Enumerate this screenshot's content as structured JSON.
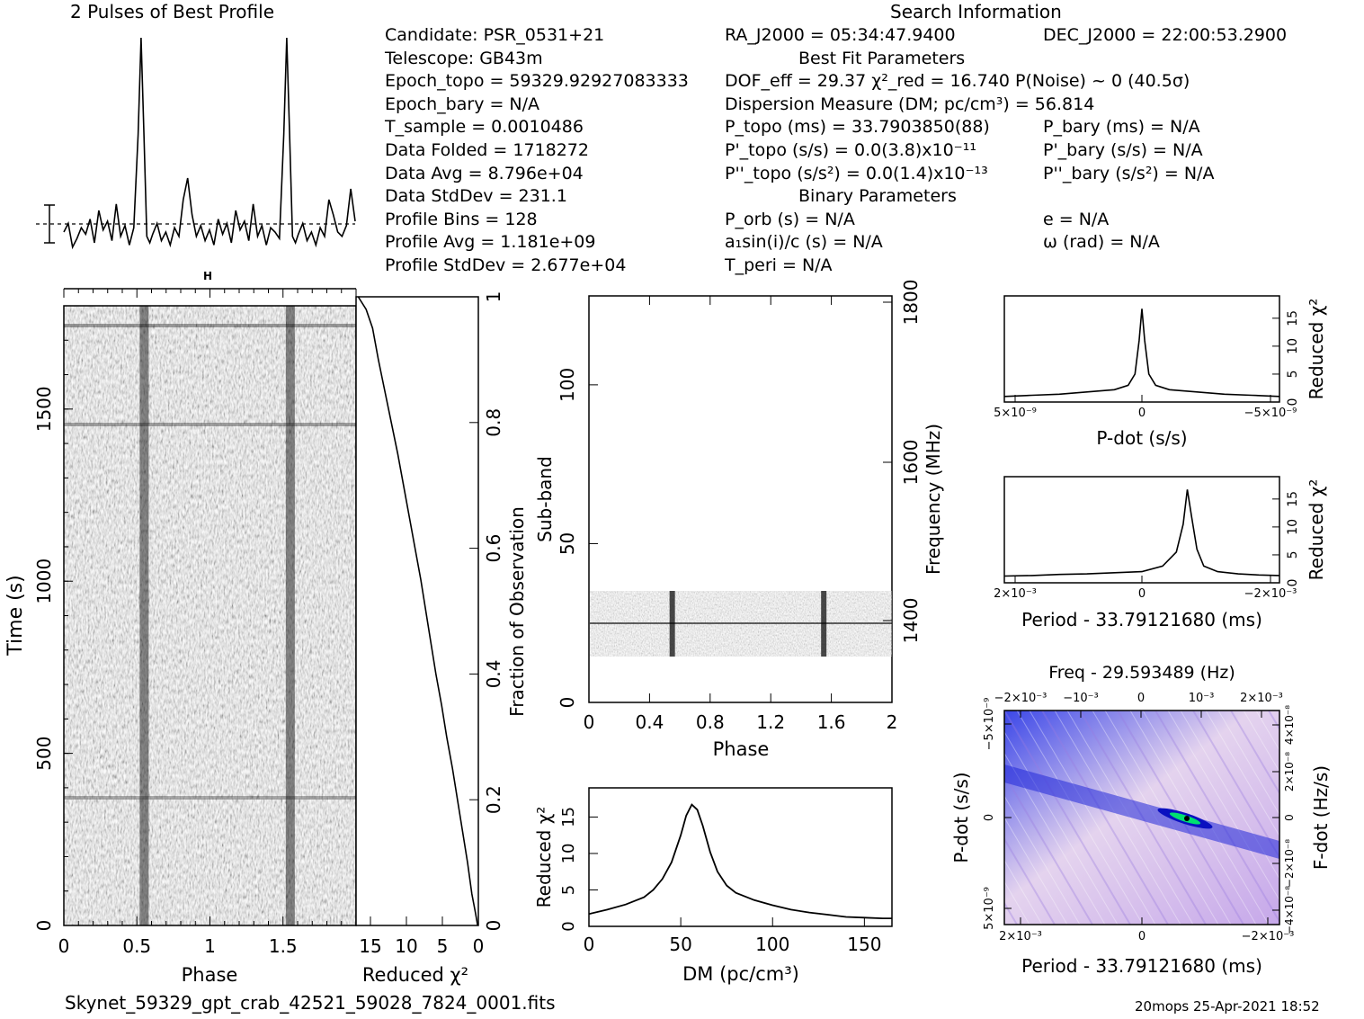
{
  "header": {
    "profile_title": "2 Pulses of Best Profile",
    "search_title": "Search Information"
  },
  "info": {
    "col1": [
      "Candidate:  PSR_0531+21",
      "Telescope:  GB43m",
      "Epoch_topo = 59329.92927083333",
      "Epoch_bary = N/A",
      "T_sample        =  0.0010486",
      "Data Folded     =  1718272",
      "Data Avg        =  8.796e+04",
      "Data StdDev     =  231.1",
      "Profile Bins    =  128",
      "Profile Avg     =  1.181e+09",
      "Profile StdDev  =  2.677e+04"
    ],
    "col2": [
      "RA_J2000 = 05:34:47.9400",
      "Best Fit Parameters",
      "DOF_eff = 29.37  χ²_red = 16.740  P(Noise) ~ 0   (40.5σ)",
      "Dispersion Measure (DM; pc/cm³) = 56.814",
      "P_topo (ms) =  33.7903850(88)",
      "P'_topo (s/s) = 0.0(3.8)x10⁻¹¹",
      "P''_topo (s/s²) = 0.0(1.4)x10⁻¹³",
      "Binary Parameters",
      "P_orb (s) = N/A",
      "a₁sin(i)/c (s) = N/A",
      "T_peri = N/A"
    ],
    "col3": [
      "DEC_J2000 = 22:00:53.2900",
      "",
      "",
      "",
      "P_bary (ms) = N/A",
      "P'_bary (s/s) = N/A",
      "P''_bary (s/s²) = N/A",
      "",
      "e = N/A",
      "ω (rad) = N/A",
      ""
    ]
  },
  "footer": {
    "filename": "Skynet_59329_gpt_crab_42521_59028_7824_0001.fits",
    "stamp": "20mops 25-Apr-2021 18:52"
  },
  "labels": {
    "time_phase_x": "Phase",
    "time_phase_y": "Time (s)",
    "time_chi_x": "Reduced χ²",
    "time_chi_y": "Fraction of Observation",
    "subband_x": "Phase",
    "subband_y": "Sub-band",
    "subband_y2": "Frequency (MHz)",
    "dm_x": "DM (pc/cm³)",
    "dm_y": "Reduced χ²",
    "pdot_x": "P-dot (s/s)",
    "pdot_y": "Reduced χ²",
    "period_x": "Period - 33.79121680 (ms)",
    "period_y": "Reduced χ²",
    "ppdot_title": "Freq - 29.593489 (Hz)",
    "ppdot_x": "Period - 33.79121680 (ms)",
    "ppdot_y": "P-dot (s/s)",
    "ppdot_y2": "F-dot (Hz/s)"
  },
  "chart_data": [
    {
      "id": "profile",
      "type": "line",
      "title": "2 Pulses of Best Profile",
      "x": [
        0.0,
        0.03,
        0.06,
        0.09,
        0.12,
        0.15,
        0.18,
        0.21,
        0.24,
        0.27,
        0.3,
        0.33,
        0.36,
        0.39,
        0.42,
        0.45,
        0.48,
        0.51,
        0.53,
        0.55,
        0.57,
        0.59,
        0.61,
        0.64,
        0.67,
        0.7,
        0.73,
        0.76,
        0.79,
        0.82,
        0.85,
        0.88,
        0.91,
        0.94,
        0.97,
        1.0,
        1.03,
        1.06,
        1.09,
        1.12,
        1.15,
        1.18,
        1.21,
        1.24,
        1.27,
        1.3,
        1.33,
        1.36,
        1.39,
        1.42,
        1.45,
        1.48,
        1.51,
        1.53,
        1.55,
        1.57,
        1.59,
        1.61,
        1.64,
        1.67,
        1.7,
        1.73,
        1.76,
        1.79,
        1.82,
        1.85,
        1.88,
        1.91,
        1.94,
        1.97,
        2.0
      ],
      "y": [
        0.1,
        0.14,
        0.03,
        0.07,
        0.12,
        0.09,
        0.16,
        0.05,
        0.2,
        0.11,
        0.15,
        0.06,
        0.23,
        0.08,
        0.13,
        0.04,
        0.12,
        0.55,
        1.0,
        0.55,
        0.08,
        0.05,
        0.09,
        0.14,
        0.06,
        0.1,
        0.04,
        0.12,
        0.08,
        0.25,
        0.35,
        0.18,
        0.08,
        0.13,
        0.06,
        0.11,
        0.04,
        0.16,
        0.09,
        0.14,
        0.05,
        0.2,
        0.11,
        0.15,
        0.06,
        0.23,
        0.08,
        0.13,
        0.04,
        0.12,
        0.1,
        0.07,
        0.55,
        1.0,
        0.55,
        0.08,
        0.05,
        0.09,
        0.14,
        0.06,
        0.1,
        0.04,
        0.12,
        0.08,
        0.25,
        0.18,
        0.1,
        0.08,
        0.13,
        0.3,
        0.15
      ]
    },
    {
      "id": "time_phase",
      "type": "heatmap",
      "xlabel": "Phase",
      "ylabel": "Time (s)",
      "xlim": [
        0,
        2
      ],
      "ylim": [
        0,
        1800
      ],
      "x_ticks": [
        0,
        0.5,
        1,
        1.5
      ],
      "y_ticks": [
        0,
        500,
        1000,
        1500
      ],
      "pulse_phases": [
        0.55,
        1.55
      ]
    },
    {
      "id": "time_chi",
      "type": "line",
      "xlabel": "Reduced χ²",
      "ylabel": "Fraction of Observation",
      "xlim": [
        17,
        0
      ],
      "ylim": [
        0,
        1
      ],
      "x_ticks": [
        15,
        10,
        5,
        0
      ],
      "y_ticks": [
        0,
        0.2,
        0.4,
        0.6,
        0.8,
        1
      ],
      "frac": [
        0,
        0.02,
        0.05,
        0.1,
        0.15,
        0.2,
        0.25,
        0.3,
        0.35,
        0.4,
        0.45,
        0.5,
        0.55,
        0.6,
        0.65,
        0.7,
        0.75,
        0.8,
        0.85,
        0.9,
        0.95,
        0.98,
        1.0
      ],
      "chi": [
        0.1,
        0.4,
        0.9,
        1.5,
        2.2,
        2.9,
        3.6,
        4.4,
        5.1,
        5.9,
        6.6,
        7.3,
        8.0,
        8.8,
        9.6,
        10.4,
        11.2,
        12.1,
        13.0,
        13.9,
        14.7,
        15.6,
        16.7
      ]
    },
    {
      "id": "subband",
      "type": "heatmap",
      "xlabel": "Phase",
      "ylabel": "Sub-band",
      "y2label": "Frequency (MHz)",
      "xlim": [
        0,
        2
      ],
      "ylim": [
        0,
        128
      ],
      "x_ticks": [
        0,
        0.4,
        0.8,
        1.2,
        1.6,
        2
      ],
      "y_ticks": [
        0,
        50,
        100
      ],
      "y2_ticks": [
        1400,
        1600,
        1800
      ],
      "data_band": [
        15,
        35
      ]
    },
    {
      "id": "dm",
      "type": "line",
      "xlabel": "DM (pc/cm³)",
      "ylabel": "Reduced χ²",
      "xlim": [
        0,
        165
      ],
      "ylim": [
        0,
        19
      ],
      "x_ticks": [
        0,
        50,
        100,
        150
      ],
      "y_ticks": [
        0,
        5,
        10,
        15
      ],
      "x": [
        0,
        10,
        20,
        30,
        35,
        40,
        45,
        50,
        53,
        56,
        59,
        62,
        66,
        70,
        75,
        80,
        90,
        100,
        110,
        120,
        130,
        140,
        150,
        160,
        165
      ],
      "y": [
        1.7,
        2.3,
        3.0,
        4.0,
        5.0,
        6.5,
        8.8,
        12.5,
        15.2,
        16.7,
        16.0,
        13.8,
        10.2,
        7.5,
        5.6,
        4.6,
        3.6,
        2.9,
        2.3,
        1.9,
        1.6,
        1.3,
        1.2,
        1.1,
        1.1
      ]
    },
    {
      "id": "pdot",
      "type": "line",
      "xlabel": "P-dot (s/s)",
      "ylabel": "Reduced χ²",
      "ylim": [
        0,
        19
      ],
      "x_tick_labels": [
        "5×10⁻⁹",
        "0",
        "−5×10⁻⁹"
      ],
      "y_ticks": [
        0,
        5,
        10,
        15
      ],
      "x": [
        -1,
        -0.8,
        -0.6,
        -0.4,
        -0.2,
        -0.1,
        -0.05,
        -0.02,
        0,
        0.02,
        0.05,
        0.1,
        0.2,
        0.4,
        0.6,
        0.8,
        1
      ],
      "y": [
        1.0,
        1.2,
        1.4,
        1.8,
        2.2,
        3.0,
        5.0,
        11.0,
        16.7,
        11.0,
        5.0,
        3.0,
        2.2,
        1.8,
        1.4,
        1.2,
        1.0
      ]
    },
    {
      "id": "period",
      "type": "line",
      "xlabel": "Period - 33.79121680 (ms)",
      "ylabel": "Reduced χ²",
      "ylim": [
        0,
        19
      ],
      "x_tick_labels": [
        "2×10⁻³",
        "0",
        "−2×10⁻³"
      ],
      "y_ticks": [
        0,
        5,
        10,
        15
      ],
      "x": [
        -1,
        -0.8,
        -0.6,
        -0.4,
        -0.2,
        0,
        0.15,
        0.25,
        0.3,
        0.33,
        0.36,
        0.4,
        0.45,
        0.55,
        0.7,
        0.85,
        1
      ],
      "y": [
        1.2,
        1.3,
        1.5,
        1.6,
        1.8,
        2.0,
        3.0,
        5.5,
        10.5,
        16.7,
        12.0,
        6.0,
        3.0,
        2.0,
        1.6,
        1.4,
        1.3
      ]
    },
    {
      "id": "ppdot",
      "type": "heatmap",
      "title": "Freq - 29.593489 (Hz)",
      "xlabel": "Period - 33.79121680 (ms)",
      "ylabel": "P-dot (s/s)",
      "y2label": "F-dot (Hz/s)",
      "x_tick_labels": [
        "2×10⁻³",
        "0",
        "−2×10⁻³"
      ],
      "top_tick_labels": [
        "−2×10⁻³",
        "−10⁻³",
        "0",
        "10⁻³",
        "2×10⁻³"
      ],
      "y_tick_labels": [
        "5×10⁻⁹",
        "0",
        "−5×10⁻⁹"
      ],
      "y2_tick_labels": [
        "−4×10⁻⁸",
        "−2×10⁻⁸",
        "0",
        "2×10⁻⁸",
        "4×10⁻⁸"
      ],
      "colors": [
        "#ffffff",
        "#e8d8f0",
        "#2030e0",
        "#00e060",
        "#000000"
      ]
    }
  ]
}
